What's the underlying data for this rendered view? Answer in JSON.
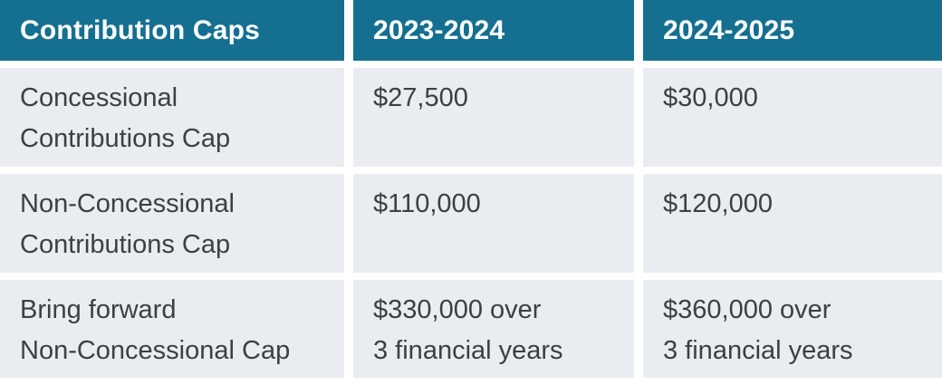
{
  "title": "Contribution Caps",
  "table": {
    "header": [
      "Contribution Caps",
      "2023-2024",
      "2024-2025"
    ],
    "rows": [
      {
        "label": "Concessional\nContributions Cap",
        "values": [
          "$27,500",
          "$30,000"
        ]
      },
      {
        "label": "Non-Concessional\nContributions Cap",
        "values": [
          "$110,000",
          "$120,000"
        ]
      },
      {
        "label": "Bring forward\nNon-Concessional Cap",
        "values": [
          "$330,000 over\n3 financial years",
          "$360,000 over\n3 financial years"
        ]
      }
    ]
  },
  "chart_data": {
    "type": "table",
    "title": "Contribution Caps",
    "columns": [
      "Contribution Caps",
      "2023-2024",
      "2024-2025"
    ],
    "rows": [
      [
        "Concessional Contributions Cap",
        "$27,500",
        "$30,000"
      ],
      [
        "Non-Concessional Contributions Cap",
        "$110,000",
        "$120,000"
      ],
      [
        "Bring forward Non-Concessional Cap",
        "$330,000 over 3 financial years",
        "$360,000 over 3 financial years"
      ]
    ]
  },
  "colors": {
    "header_background": "#156f90",
    "header_text": "#ffffff",
    "cell_background": "#e9edf1",
    "cell_text": "#3b4045",
    "divider": "#ffffff"
  }
}
